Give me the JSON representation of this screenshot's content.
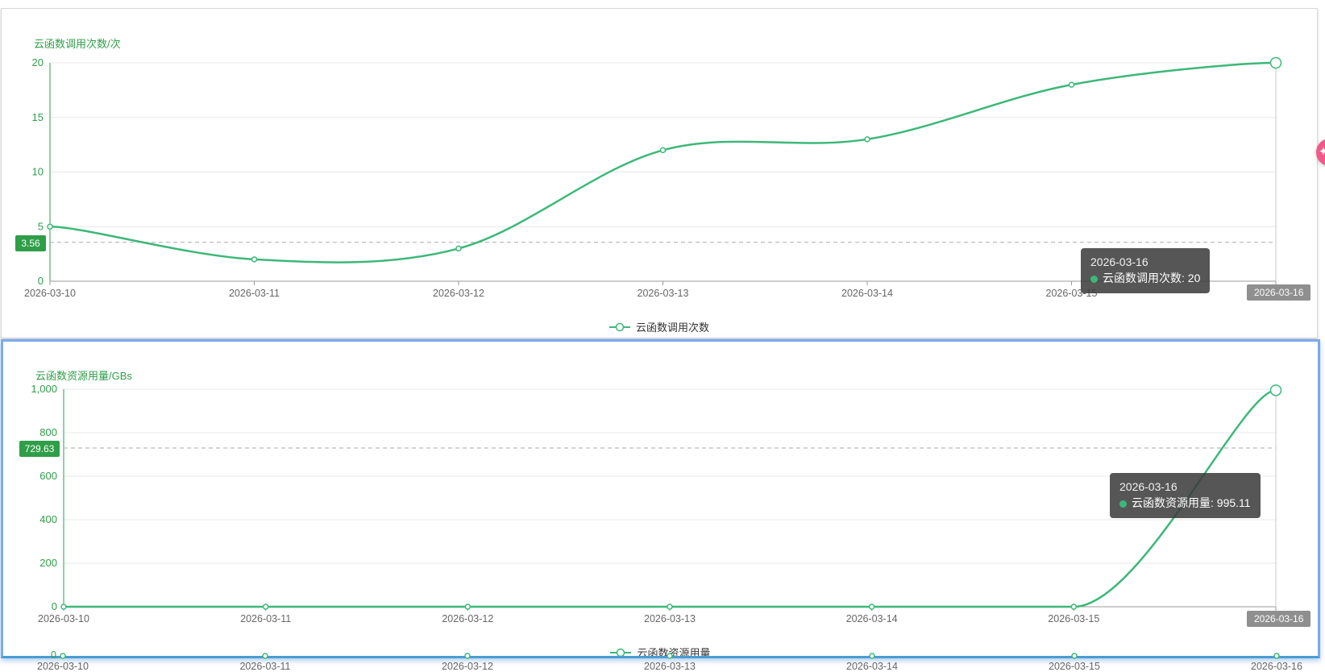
{
  "panel1": {
    "title": "云函数调用次数/次",
    "dashed_badge": "3.56",
    "tooltip_date": "2026-03-16",
    "tooltip_text": "云函数调用次数: 20",
    "axis_badge": "2026-03-16",
    "legend": "云函数调用次数"
  },
  "panel2": {
    "title": "云函数资源用量/GBs",
    "dashed_badge": "729.63",
    "tooltip_date": "2026-03-16",
    "tooltip_text": "云函数资源用量: 995.11",
    "axis_badge": "2026-03-16",
    "legend": "云函数资源用量"
  },
  "bottom": {
    "y_zero_label": "0",
    "x_labels": [
      "2026-03-10",
      "2026-03-11",
      "2026-03-12",
      "2026-03-13",
      "2026-03-14",
      "2026-03-15",
      "2026-03-16"
    ]
  },
  "fab": {
    "glyph": "✦"
  },
  "colors": {
    "green_text": "#2f9e48",
    "green_line": "#3cb878",
    "grid": "#e8e8e8",
    "axis": "#9a9a9a",
    "x_label": "#666666",
    "dashed": "#aaaaaa",
    "pointer": "#c9c9c9",
    "badge_gray": "#8f8f8f",
    "panel2_border": "#79aaec",
    "pink": "#f2598a"
  },
  "chart_data": [
    {
      "type": "line",
      "title": "云函数调用次数/次",
      "categories": [
        "2026-03-10",
        "2026-03-11",
        "2026-03-12",
        "2026-03-13",
        "2026-03-14",
        "2026-03-15",
        "2026-03-16"
      ],
      "series": [
        {
          "name": "云函数调用次数",
          "values": [
            5,
            2,
            3,
            12,
            13,
            18,
            20
          ]
        }
      ],
      "ylim": [
        0,
        20
      ],
      "y_ticks": [
        0,
        5,
        10,
        15,
        20
      ],
      "y_tick_labels": [
        "0",
        "5",
        "10",
        "15",
        "20"
      ],
      "marker_line": 3.56,
      "line_color": "#3cb878",
      "grid": true,
      "legend_position": "bottom",
      "hovered_point": "2026-03-16",
      "tooltip": {
        "date": "2026-03-16",
        "label": "云函数调用次数",
        "value": 20
      }
    },
    {
      "type": "line",
      "title": "云函数资源用量/GBs",
      "categories": [
        "2026-03-10",
        "2026-03-11",
        "2026-03-12",
        "2026-03-13",
        "2026-03-14",
        "2026-03-15",
        "2026-03-16"
      ],
      "series": [
        {
          "name": "云函数资源用量",
          "values": [
            0,
            0,
            0,
            0,
            0,
            0,
            995.11
          ]
        }
      ],
      "ylim": [
        0,
        1000
      ],
      "y_ticks": [
        0,
        200,
        400,
        600,
        800,
        1000
      ],
      "y_tick_labels": [
        "0",
        "200",
        "400",
        "600",
        "800",
        "1,000"
      ],
      "marker_line": 729.63,
      "line_color": "#3cb878",
      "grid": true,
      "legend_position": "bottom",
      "hovered_point": "2026-03-16",
      "tooltip": {
        "date": "2026-03-16",
        "label": "云函数资源用量",
        "value": 995.11
      }
    }
  ]
}
